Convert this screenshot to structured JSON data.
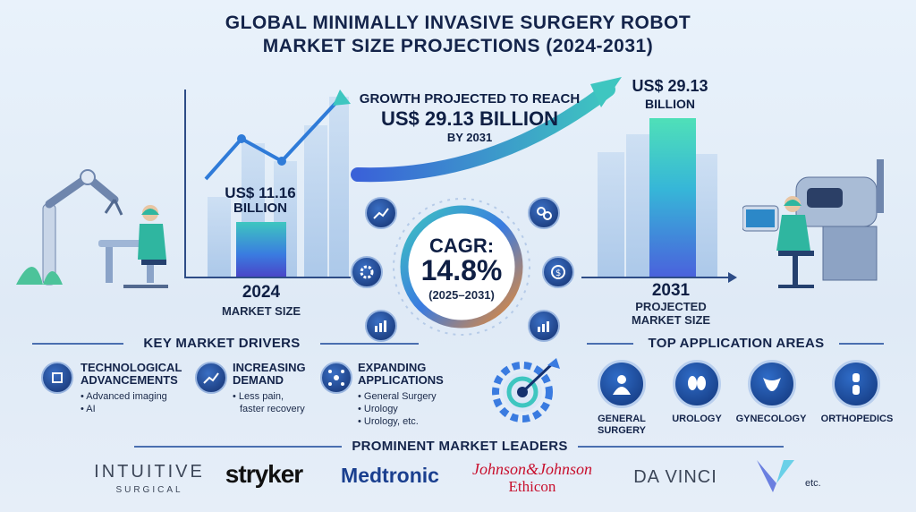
{
  "title_line1": "GLOBAL MINIMALLY INVASIVE SURGERY ROBOT",
  "title_line2": "MARKET SIZE PROJECTIONS (2024-2031)",
  "growth": {
    "line1": "GROWTH PROJECTED TO REACH",
    "line2": "US$ 29.13 BILLION",
    "line3": "BY 2031"
  },
  "left_value": {
    "amount": "US$ 11.16",
    "unit": "BILLION",
    "year": "2024",
    "caption": "MARKET SIZE"
  },
  "right_value": {
    "amount": "US$ 29.13",
    "unit": "BILLION",
    "year": "2031",
    "caption1": "PROJECTED",
    "caption2": "MARKET SIZE"
  },
  "cagr": {
    "label": "CAGR:",
    "value": "14.8%",
    "range": "(2025–2031)"
  },
  "drivers": {
    "heading": "KEY MARKET DRIVERS",
    "items": [
      {
        "title1": "TECHNOLOGICAL",
        "title2": "ADVANCEMENTS",
        "bullets": [
          "• Advanced imaging",
          "• AI"
        ]
      },
      {
        "title1": "INCREASING",
        "title2": "DEMAND",
        "bullets": [
          "• Less pain,",
          "faster recovery"
        ]
      },
      {
        "title1": "EXPANDING",
        "title2": "APPLICATIONS",
        "bullets": [
          "• General Surgery",
          "• Urology",
          "• Urology, etc."
        ]
      }
    ]
  },
  "applications": {
    "heading": "TOP APPLICATION AREAS",
    "items": [
      {
        "line1": "GENERAL",
        "line2": "SURGERY"
      },
      {
        "line1": "UROLOGY",
        "line2": ""
      },
      {
        "line1": "GYNECOLOGY",
        "line2": ""
      },
      {
        "line1": "ORTHOPEDICS",
        "line2": ""
      }
    ]
  },
  "leaders": {
    "heading": "PROMINENT MARKET LEADERS",
    "intuitive_1": "INTUITIVE",
    "intuitive_2": "SURGICAL",
    "stryker": "stryker",
    "medtronic": "Medtronic",
    "jnj_1": "Johnson&Johnson",
    "jnj_2": "Ethicon",
    "davinci": "DA VINCI",
    "etc": "etc."
  },
  "colors": {
    "navy": "#14244a",
    "teal": "#3ec6c0",
    "blue": "#3a7be0",
    "purple": "#4a46c8",
    "stryker": "#111111",
    "medtronic": "#1a3f8f",
    "jnj": "#c8102e"
  }
}
